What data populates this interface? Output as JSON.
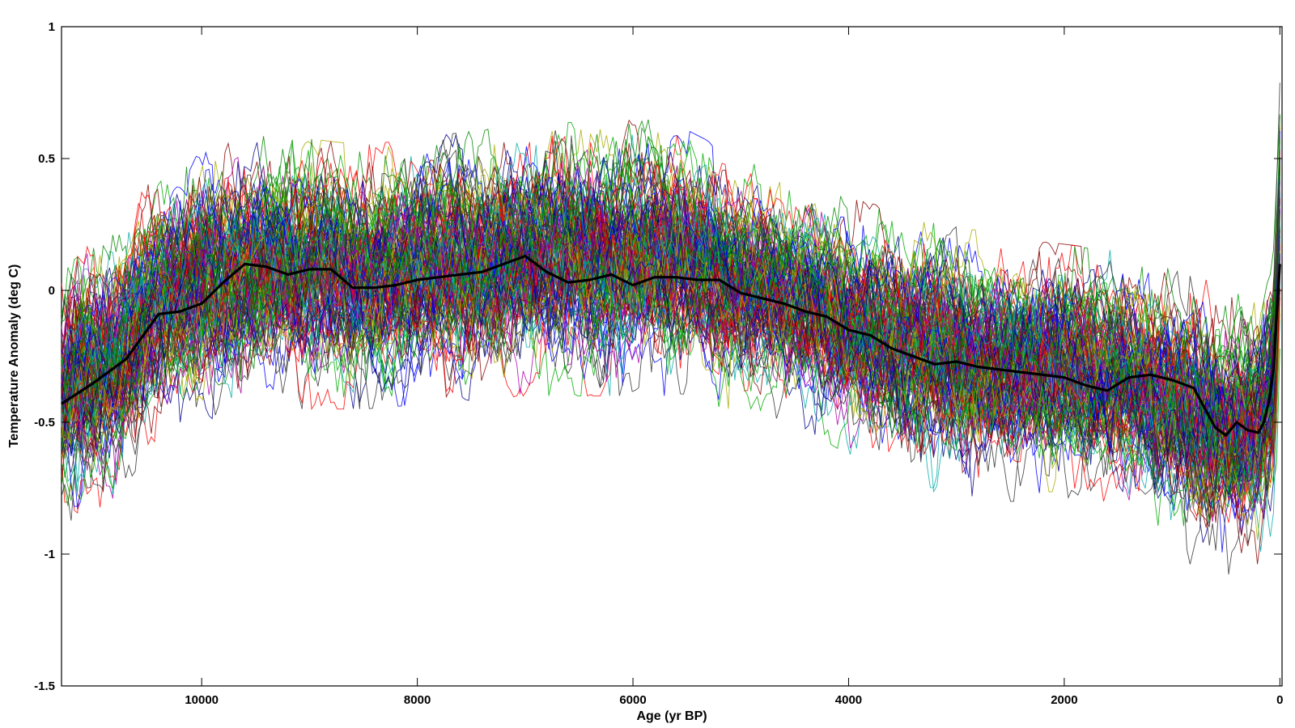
{
  "chart_data": {
    "type": "line",
    "title": "",
    "xlabel": "Age (yr BP)",
    "ylabel": "Temperature Anomaly (deg C)",
    "xlim": [
      11300,
      -20
    ],
    "ylim": [
      -1.5,
      1
    ],
    "x_reversed": true,
    "x_ticks": [
      10000,
      8000,
      6000,
      4000,
      2000,
      0
    ],
    "x_tick_labels": [
      "10000",
      "8000",
      "6000",
      "4000",
      "2000",
      "0"
    ],
    "y_ticks": [
      1,
      0.5,
      0,
      -0.5,
      -1,
      -1.5
    ],
    "y_tick_labels": [
      "1",
      "0.5",
      "0",
      "-0.5",
      "-1",
      "-1.5"
    ],
    "grid": false,
    "legend": "none",
    "ensemble": {
      "description_count": 1000,
      "colors": [
        "#ff0000",
        "#0000ff",
        "#00aa00",
        "#aa00aa",
        "#00aaaa",
        "#aaaa00",
        "#000088",
        "#880000",
        "#008800",
        "#333333"
      ],
      "spread_around_mean": [
        {
          "x": 11300,
          "lo": -0.9,
          "hi": 0.1
        },
        {
          "x": 10800,
          "lo": -0.75,
          "hi": 0.2
        },
        {
          "x": 10400,
          "lo": -0.5,
          "hi": 0.4
        },
        {
          "x": 9500,
          "lo": -0.4,
          "hi": 0.55
        },
        {
          "x": 8500,
          "lo": -0.4,
          "hi": 0.5
        },
        {
          "x": 7000,
          "lo": -0.35,
          "hi": 0.58
        },
        {
          "x": 5700,
          "lo": -0.35,
          "hi": 0.6
        },
        {
          "x": 4500,
          "lo": -0.45,
          "hi": 0.35
        },
        {
          "x": 3500,
          "lo": -0.7,
          "hi": 0.25
        },
        {
          "x": 2500,
          "lo": -0.75,
          "hi": 0.15
        },
        {
          "x": 1500,
          "lo": -0.75,
          "hi": 0.1
        },
        {
          "x": 800,
          "lo": -1.0,
          "hi": 0.0
        },
        {
          "x": 200,
          "lo": -1.05,
          "hi": -0.05
        },
        {
          "x": 50,
          "lo": -0.9,
          "hi": 0.2
        },
        {
          "x": 0,
          "lo": -0.3,
          "hi": 0.8
        }
      ]
    },
    "series": [
      {
        "color": "#000000",
        "x": [
          11300,
          11000,
          10700,
          10400,
          10200,
          10000,
          9800,
          9600,
          9400,
          9200,
          9000,
          8800,
          8600,
          8400,
          8200,
          8000,
          7800,
          7600,
          7400,
          7200,
          7000,
          6800,
          6600,
          6400,
          6200,
          6000,
          5800,
          5600,
          5400,
          5200,
          5000,
          4800,
          4600,
          4400,
          4200,
          4000,
          3800,
          3600,
          3400,
          3200,
          3000,
          2800,
          2600,
          2400,
          2200,
          2000,
          1800,
          1600,
          1400,
          1200,
          1000,
          800,
          600,
          500,
          400,
          300,
          200,
          150,
          100,
          60,
          30,
          0
        ],
        "y": [
          -0.43,
          -0.35,
          -0.26,
          -0.09,
          -0.08,
          -0.05,
          0.03,
          0.1,
          0.09,
          0.06,
          0.08,
          0.08,
          0.01,
          0.01,
          0.02,
          0.04,
          0.05,
          0.06,
          0.07,
          0.1,
          0.13,
          0.07,
          0.03,
          0.04,
          0.06,
          0.02,
          0.05,
          0.05,
          0.04,
          0.04,
          -0.01,
          -0.03,
          -0.05,
          -0.08,
          -0.1,
          -0.15,
          -0.17,
          -0.22,
          -0.25,
          -0.28,
          -0.27,
          -0.29,
          -0.3,
          -0.31,
          -0.32,
          -0.33,
          -0.36,
          -0.38,
          -0.33,
          -0.32,
          -0.34,
          -0.37,
          -0.52,
          -0.55,
          -0.5,
          -0.53,
          -0.54,
          -0.5,
          -0.42,
          -0.3,
          -0.1,
          0.1
        ]
      }
    ]
  }
}
